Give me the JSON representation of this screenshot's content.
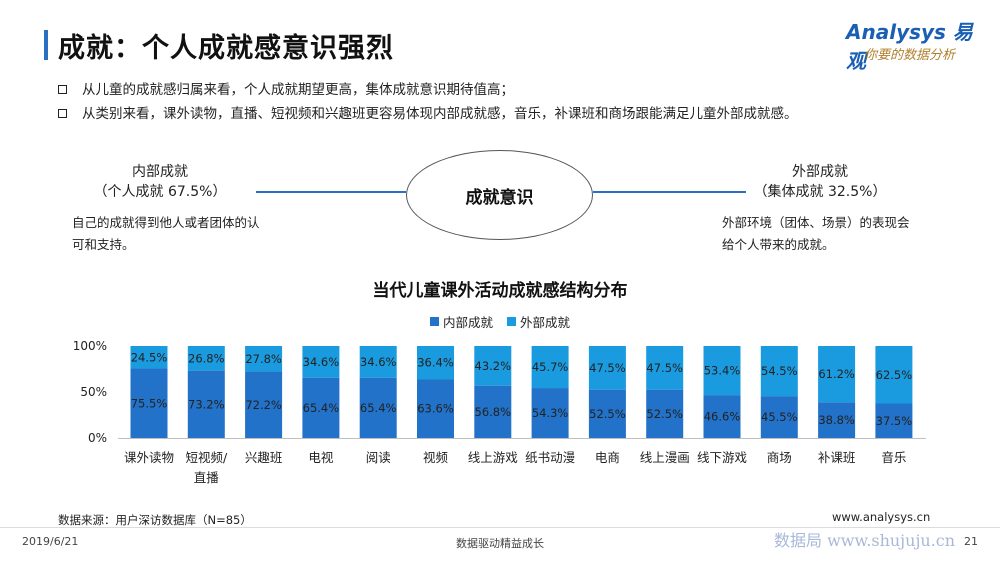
{
  "header": {
    "title": "成就：个人成就感意识强烈",
    "logo_brand": "Analysys 易观",
    "logo_slogan": "你要的数据分析"
  },
  "bullets": [
    "从儿童的成就感归属来看，个人成就期望更高，集体成就意识期待值高；",
    "从类别来看，课外读物，直播、短视频和兴趣班更容易体现内部成就感，音乐，补课班和商场跟能满足儿童外部成就感。"
  ],
  "diagram": {
    "center": "成就意识",
    "left": {
      "title": "内部成就",
      "subtitle": "（个人成就 67.5%）",
      "desc_line1": "自己的成就得到他人或者团体的认",
      "desc_line2": "可和支持。"
    },
    "right": {
      "title": "外部成就",
      "subtitle": "（集体成就 32.5%）",
      "desc_line1": "外部环境（团体、场景）的表现会",
      "desc_line2": "给个人带来的成就。"
    }
  },
  "colors": {
    "inner": "#2272c9",
    "outer": "#1a9be0",
    "accent": "#2b6fc2"
  },
  "chart_data": {
    "type": "bar",
    "stacked": true,
    "title": "当代儿童课外活动成就感结构分布",
    "categories": [
      "课外读物",
      "短视频/直播",
      "兴趣班",
      "电视",
      "阅读",
      "视频",
      "线上游戏",
      "纸书动漫",
      "电商",
      "线上漫画",
      "线下游戏",
      "商场",
      "补课班",
      "音乐"
    ],
    "category_lines": [
      [
        "课外读物"
      ],
      [
        "短视频/",
        "直播"
      ],
      [
        "兴趣班"
      ],
      [
        "电视"
      ],
      [
        "阅读"
      ],
      [
        "视频"
      ],
      [
        "线上游戏"
      ],
      [
        "纸书动漫"
      ],
      [
        "电商"
      ],
      [
        "线上漫画"
      ],
      [
        "线下游戏"
      ],
      [
        "商场"
      ],
      [
        "补课班"
      ],
      [
        "音乐"
      ]
    ],
    "series": [
      {
        "name": "内部成就",
        "values": [
          75.5,
          73.2,
          72.2,
          65.4,
          65.4,
          63.6,
          56.8,
          54.3,
          52.5,
          52.5,
          46.6,
          45.5,
          38.8,
          37.5
        ]
      },
      {
        "name": "外部成就",
        "values": [
          24.5,
          26.8,
          27.8,
          34.6,
          34.6,
          36.4,
          43.2,
          45.7,
          47.5,
          47.5,
          53.4,
          54.5,
          61.2,
          62.5
        ]
      }
    ],
    "ylim": [
      0,
      100
    ],
    "yticks": [
      "0%",
      "50%",
      "100%"
    ],
    "legend": "top-center"
  },
  "footer": {
    "source": "数据来源：用户深访数据库（N=85）",
    "website": "www.analysys.cn",
    "date": "2019/6/21",
    "slogan": "数据驱动精益成长",
    "watermark": "数据局 www.shujuju.cn",
    "page": "21"
  }
}
